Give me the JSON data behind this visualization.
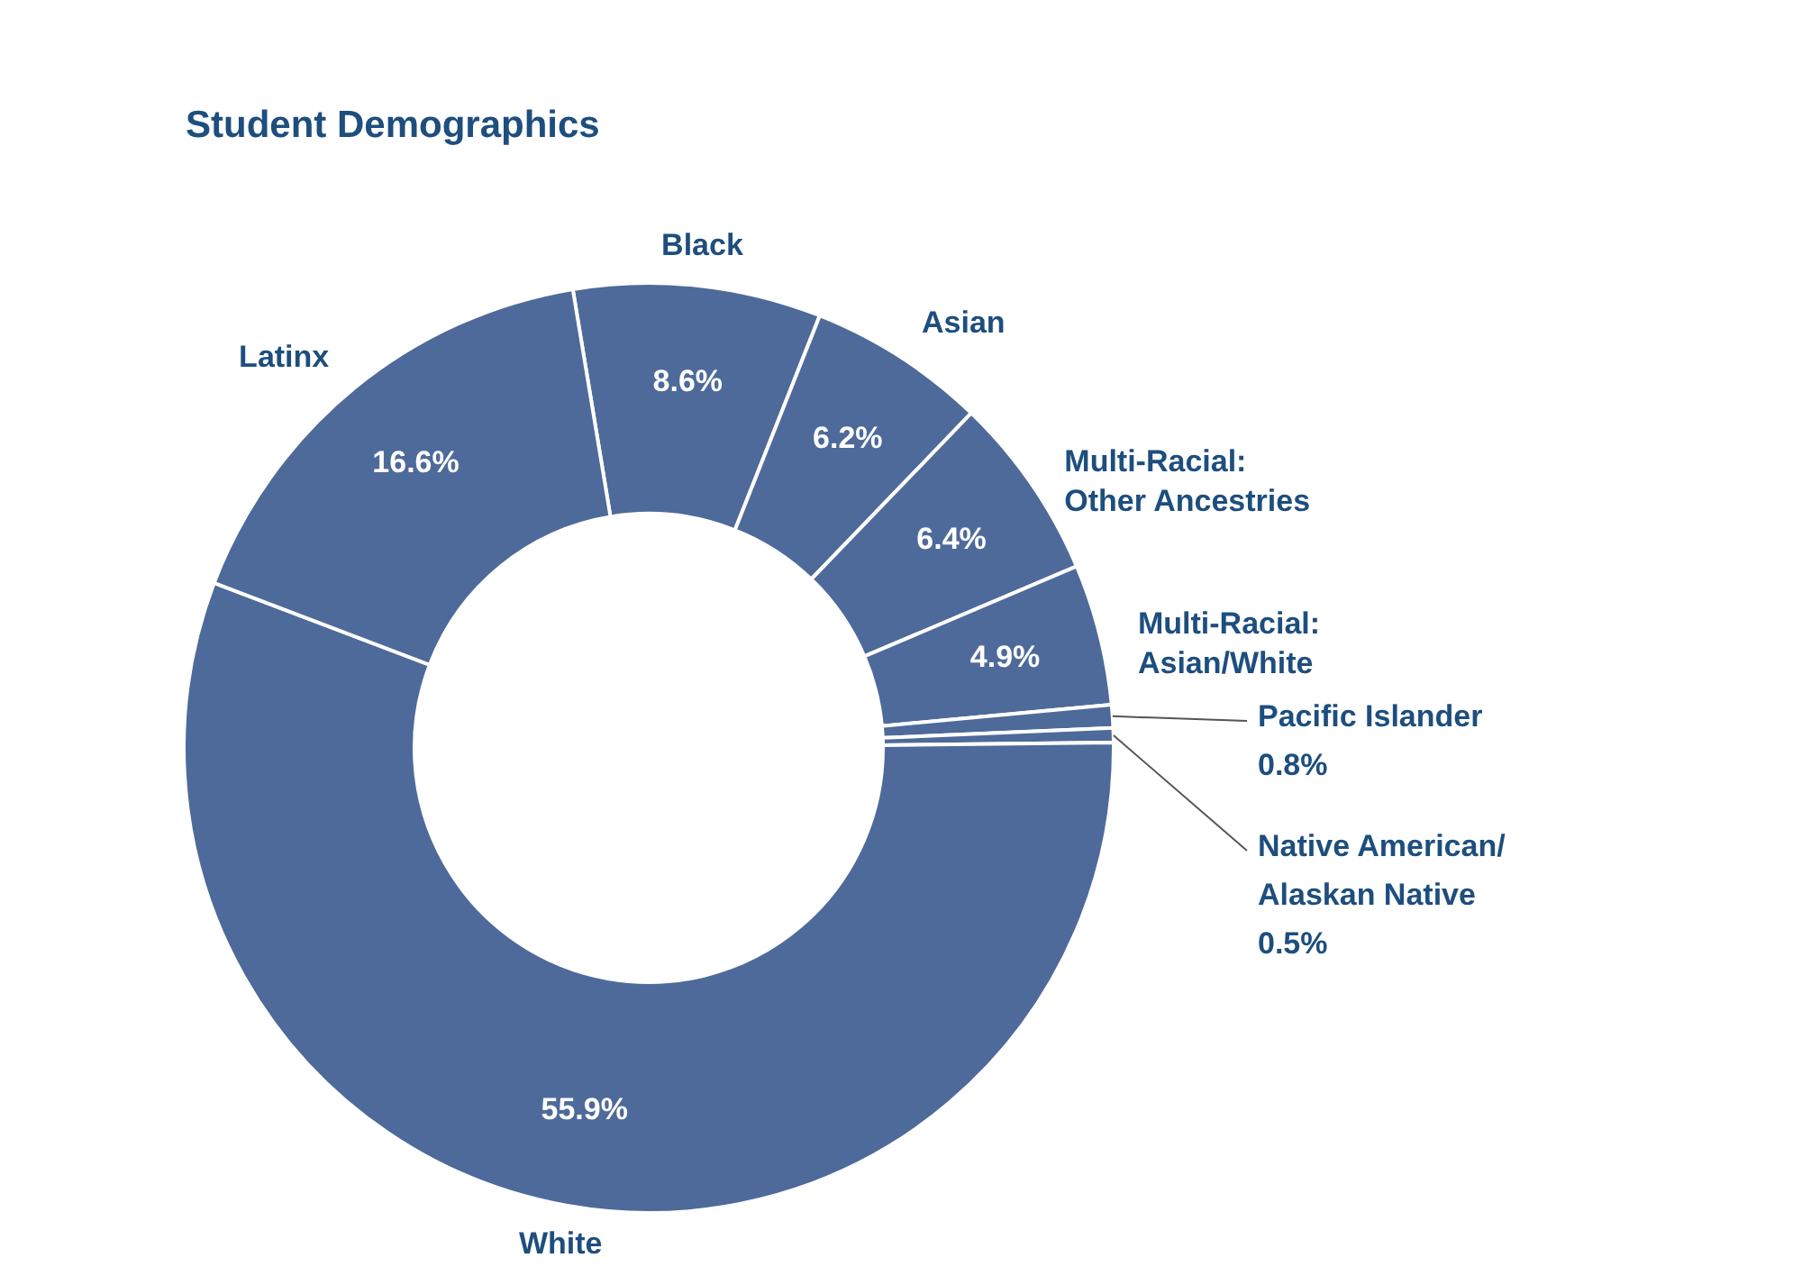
{
  "chart_data": {
    "type": "donut",
    "title": "Student Demographics",
    "categories": [
      "Black",
      "Asian",
      "Multi-Racial: Other Ancestries",
      "Multi-Racial: Asian/White",
      "Pacific Islander",
      "Native American/ Alaskan Native",
      "White",
      "Latinx"
    ],
    "values": [
      8.6,
      6.2,
      6.4,
      4.9,
      0.8,
      0.5,
      55.9,
      16.6
    ],
    "value_labels": [
      "8.6%",
      "6.2%",
      "6.4%",
      "4.9%",
      "0.8%",
      "0.5%",
      "55.9%",
      "16.6%"
    ],
    "colors": [
      "#4e6a9a",
      "#4e6a9a",
      "#4e6a9a",
      "#4e6a9a",
      "#4e6a9a",
      "#4e6a9a",
      "#4e6a9a",
      "#4e6a9a"
    ]
  }
}
